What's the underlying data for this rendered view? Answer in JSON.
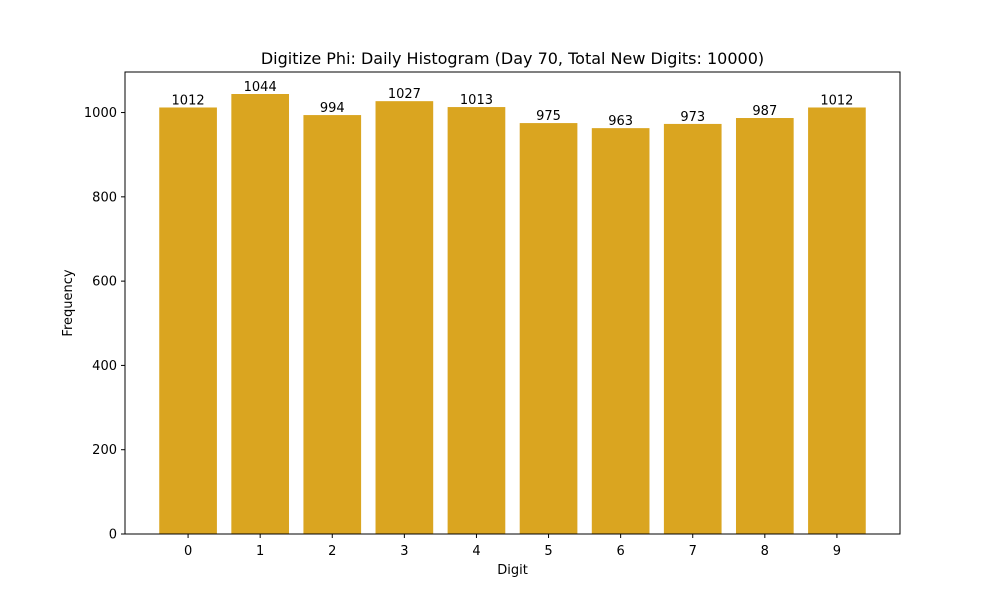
{
  "chart_data": {
    "type": "bar",
    "title": "Digitize Phi: Daily Histogram (Day 70, Total New Digits: 10000)",
    "xlabel": "Digit",
    "ylabel": "Frequency",
    "categories": [
      "0",
      "1",
      "2",
      "3",
      "4",
      "5",
      "6",
      "7",
      "8",
      "9"
    ],
    "values": [
      1012,
      1044,
      994,
      1027,
      1013,
      975,
      963,
      973,
      987,
      1012
    ],
    "value_labels": [
      "1012",
      "1044",
      "994",
      "1027",
      "1013",
      "975",
      "963",
      "973",
      "987",
      "1012"
    ],
    "ylim": [
      0,
      1096.2
    ],
    "yticks": [
      0,
      200,
      400,
      600,
      800,
      1000
    ],
    "ytick_labels": [
      "0",
      "200",
      "400",
      "600",
      "800",
      "1000"
    ],
    "grid": false,
    "bar_color": "#DAA520"
  }
}
